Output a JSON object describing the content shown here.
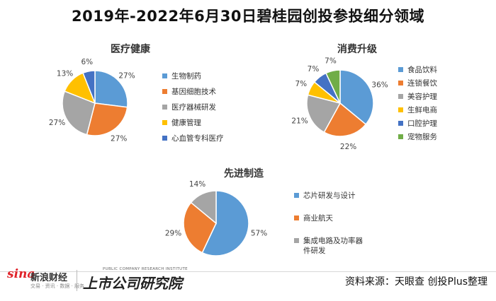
{
  "title": "2019年-2022年6月30日碧桂园创投参投细分领域",
  "source": "资料来源：天眼查 创投Plus整理",
  "logos": {
    "sina_brand": "sina",
    "sina_cn": "新浪财经",
    "sina_sub": "交易 · 资讯 · 数据 · 服务",
    "shangshi_en": "PUBLIC COMPANY RESEARCH INSTITUTE",
    "shangshi_cn": "上市公司研究院"
  },
  "colors": {
    "blue": "#5b9bd5",
    "orange": "#ed7d31",
    "gray": "#a5a5a5",
    "yellow": "#ffc000",
    "darkblue": "#4472c4",
    "green": "#70ad47"
  },
  "chart_data": [
    {
      "type": "pie",
      "title": "医疗健康",
      "categories": [
        "生物制药",
        "基因细胞技术",
        "医疗器械研发",
        "健康管理",
        "心血管专科医疗"
      ],
      "values": [
        27,
        27,
        27,
        13,
        6
      ],
      "labels": [
        "27%",
        "27%",
        "27%",
        "13%",
        "6%"
      ],
      "colors": [
        "#5b9bd5",
        "#ed7d31",
        "#a5a5a5",
        "#ffc000",
        "#4472c4"
      ],
      "legend": "right"
    },
    {
      "type": "pie",
      "title": "消费升级",
      "categories": [
        "食品饮料",
        "连锁餐饮",
        "美容护理",
        "生鲜电商",
        "口腔护理",
        "宠物服务"
      ],
      "values": [
        36,
        22,
        21,
        7,
        7,
        7
      ],
      "labels": [
        "36%",
        "22%",
        "21%",
        "7%",
        "7%",
        "7%"
      ],
      "colors": [
        "#5b9bd5",
        "#ed7d31",
        "#a5a5a5",
        "#ffc000",
        "#4472c4",
        "#70ad47"
      ],
      "legend": "right"
    },
    {
      "type": "pie",
      "title": "先进制造",
      "categories": [
        "芯片研发与设计",
        "商业航天",
        "集成电路及功率器件研发"
      ],
      "values": [
        57,
        29,
        14
      ],
      "labels": [
        "57%",
        "29%",
        "14%"
      ],
      "colors": [
        "#5b9bd5",
        "#ed7d31",
        "#a5a5a5"
      ],
      "legend": "right"
    }
  ]
}
